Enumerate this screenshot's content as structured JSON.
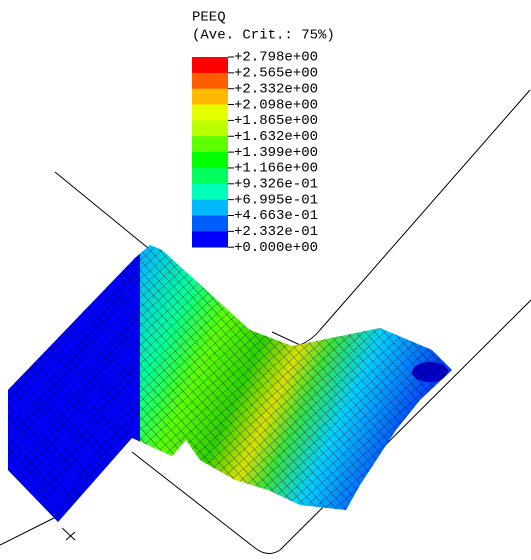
{
  "legend": {
    "title": "PEEQ",
    "subtitle": "(Ave. Crit.: 75%)",
    "labels": [
      "+2.798e+00",
      "+2.565e+00",
      "+2.332e+00",
      "+2.098e+00",
      "+1.865e+00",
      "+1.632e+00",
      "+1.399e+00",
      "+1.166e+00",
      "+9.326e-01",
      "+6.995e-01",
      "+4.663e-01",
      "+2.332e-01",
      "+0.000e+00"
    ]
  }
}
